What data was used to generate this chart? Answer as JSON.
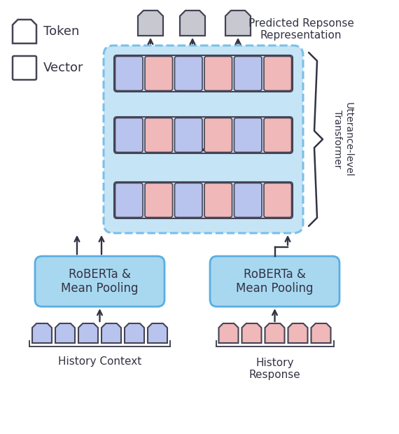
{
  "title": "Predicted Repsonse\nRepresentation",
  "legend_token_label": "Token",
  "legend_vector_label": "Vector",
  "utterance_label": "Utterance-level\nTransformer",
  "roberta_left_label": "RoBERTa &\nMean Pooling",
  "roberta_right_label": "RoBERTa &\nMean Pooling",
  "history_context_label": "History Context",
  "history_response_label": "History\nResponse",
  "dots_label": "...",
  "bg_color": "#ffffff",
  "transformer_bg": "#c5e4f5",
  "transformer_border": "#7bbfe8",
  "row_bg": "#d0dff5",
  "cell_blue": "#b8c4ee",
  "cell_pink": "#f0b8b8",
  "roberta_bg": "#a8d8f0",
  "roberta_border": "#5aaee0",
  "token_gray": "#c8c8d0",
  "token_border": "#444455",
  "arrow_color": "#333344",
  "text_color": "#333344",
  "brace_color": "#333344"
}
